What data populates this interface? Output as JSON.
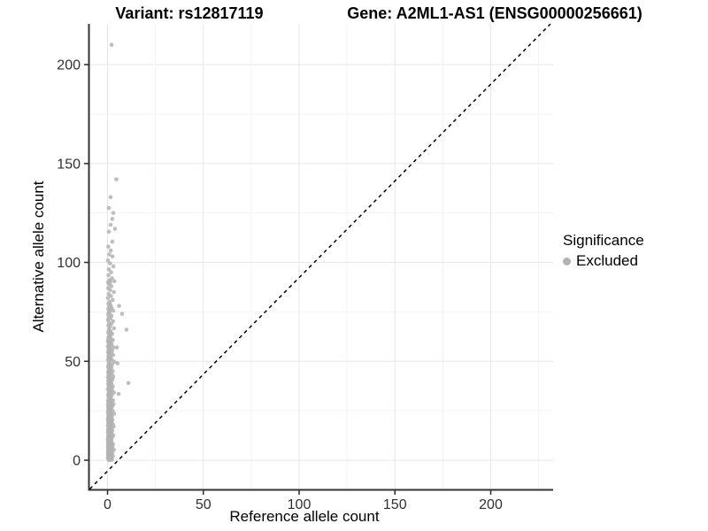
{
  "chart_data": {
    "type": "scatter",
    "title_left": "Variant: rs12817119",
    "title_right": "Gene: A2ML1-AS1 (ENSG00000256661)",
    "xlabel": "Reference allele count",
    "ylabel": "Alternative allele count",
    "x_ticks": [
      0,
      50,
      100,
      150,
      200
    ],
    "y_ticks": [
      0,
      50,
      100,
      150,
      200
    ],
    "x_minor_gridlines": [
      25,
      75,
      125,
      175,
      225
    ],
    "y_minor_gridlines": [
      25,
      75,
      125,
      175
    ],
    "xlim": [
      -9.5,
      232.5
    ],
    "ylim": [
      -14.8,
      220.6
    ],
    "grid": true,
    "reference_line": {
      "type": "identity",
      "slope": 1,
      "intercept": 0,
      "style": "dashed",
      "color": "#000000"
    },
    "legend": {
      "position": "right",
      "title": "Significance",
      "items": [
        {
          "label": "Excluded",
          "color": "#b3b3b3"
        }
      ]
    },
    "point_color": "#b3b3b3",
    "axis_color": "#333333",
    "tick_label_color": "#303030",
    "major_grid_color": "#e7e7e7",
    "minor_grid_color": "#f3f3f3",
    "points": [
      [
        2.1,
        210
      ],
      [
        4.6,
        142
      ],
      [
        1.6,
        133
      ],
      [
        0.7,
        127.5
      ],
      [
        3.0,
        125
      ],
      [
        2.5,
        122
      ],
      [
        1.6,
        119
      ],
      [
        3.9,
        117
      ],
      [
        0.7,
        115.5
      ],
      [
        2.5,
        110.5
      ],
      [
        6.0,
        78
      ],
      [
        7.6,
        74
      ],
      [
        9.9,
        66
      ],
      [
        10.9,
        39
      ],
      [
        5.8,
        33.5
      ],
      [
        4.9,
        57
      ],
      [
        5.2,
        49
      ],
      [
        0.4,
        108
      ],
      [
        1.7,
        106
      ],
      [
        0.9,
        104
      ],
      [
        2.6,
        103
      ],
      [
        0.2,
        101
      ],
      [
        1.3,
        99.5
      ],
      [
        3.1,
        98
      ],
      [
        0.7,
        96.5
      ],
      [
        1.9,
        95
      ],
      [
        0.5,
        93.5
      ],
      [
        2.3,
        92
      ],
      [
        1.0,
        91
      ],
      [
        3.6,
        90.5
      ],
      [
        0.3,
        90
      ],
      [
        1.5,
        90.2
      ],
      [
        0.8,
        89
      ],
      [
        2.0,
        88
      ],
      [
        0.3,
        87
      ],
      [
        1.4,
        86
      ],
      [
        3.3,
        85
      ],
      [
        0.6,
        84
      ],
      [
        1.8,
        83
      ],
      [
        0.2,
        82
      ],
      [
        2.7,
        81
      ],
      [
        1.1,
        80
      ],
      [
        0.5,
        79
      ],
      [
        1.6,
        78.5
      ],
      [
        0.9,
        77.5
      ],
      [
        2.2,
        77
      ],
      [
        0.4,
        76.5
      ],
      [
        1.3,
        76
      ],
      [
        3.0,
        75.5
      ],
      [
        0.7,
        75
      ],
      [
        1.0,
        74.5
      ],
      [
        0.3,
        73.8
      ],
      [
        2.1,
        73
      ],
      [
        0.6,
        72.3
      ],
      [
        1.5,
        71.6
      ],
      [
        0.2,
        70.9
      ],
      [
        2.9,
        70.2
      ],
      [
        0.8,
        69.5
      ],
      [
        1.9,
        68.8
      ],
      [
        0.4,
        68.1
      ],
      [
        1.2,
        67.4
      ],
      [
        3.4,
        66.7
      ],
      [
        0.7,
        66
      ],
      [
        1.6,
        65.3
      ],
      [
        0.3,
        64.6
      ],
      [
        2.4,
        63.9
      ],
      [
        0.9,
        63.2
      ],
      [
        1.4,
        62.5
      ],
      [
        0.5,
        61.8
      ],
      [
        2.0,
        61.1
      ],
      [
        0.2,
        60.4
      ],
      [
        1.1,
        60
      ],
      [
        2.8,
        60.7
      ],
      [
        0.6,
        62
      ],
      [
        1.7,
        64
      ],
      [
        0.4,
        59.6
      ],
      [
        1.3,
        59.2
      ],
      [
        2.2,
        58.8
      ],
      [
        0.7,
        58.4
      ],
      [
        1.8,
        58
      ],
      [
        0.2,
        57.5
      ],
      [
        3.1,
        57
      ],
      [
        0.9,
        56.6
      ],
      [
        1.5,
        56.2
      ],
      [
        0.5,
        55.8
      ],
      [
        2.5,
        55.3
      ],
      [
        1.0,
        54.9
      ],
      [
        0.3,
        54.5
      ],
      [
        1.9,
        54
      ],
      [
        0.6,
        53.6
      ],
      [
        2.9,
        53.2
      ],
      [
        1.2,
        52.8
      ],
      [
        0.4,
        52.3
      ],
      [
        1.6,
        51.9
      ],
      [
        0.8,
        51.5
      ],
      [
        2.1,
        51
      ],
      [
        0.2,
        50.6
      ],
      [
        1.4,
        50.2
      ],
      [
        3.5,
        49.8
      ],
      [
        0.7,
        49.3
      ],
      [
        1.1,
        48.9
      ],
      [
        2.4,
        48.4
      ],
      [
        0.5,
        48
      ],
      [
        1.7,
        47.6
      ],
      [
        0.3,
        47.1
      ],
      [
        2.0,
        46.7
      ],
      [
        0.9,
        46.2
      ],
      [
        1.3,
        45.8
      ],
      [
        0.6,
        45.4
      ],
      [
        2.7,
        45
      ],
      [
        0.3,
        44.6
      ],
      [
        1.5,
        44.2
      ],
      [
        0.8,
        43.9
      ],
      [
        2.3,
        43.5
      ],
      [
        0.5,
        43.1
      ],
      [
        1.2,
        42.7
      ],
      [
        3.0,
        42.3
      ],
      [
        0.2,
        41.9
      ],
      [
        1.8,
        41.5
      ],
      [
        0.6,
        41.2
      ],
      [
        2.6,
        40.8
      ],
      [
        1.0,
        40.4
      ],
      [
        0.4,
        40
      ],
      [
        1.6,
        39.6
      ],
      [
        0.9,
        39.2
      ],
      [
        2.1,
        38.8
      ],
      [
        0.3,
        38.5
      ],
      [
        1.3,
        38.1
      ],
      [
        0.7,
        37.7
      ],
      [
        2.8,
        37.3
      ],
      [
        1.1,
        36.9
      ],
      [
        0.5,
        36.5
      ],
      [
        1.9,
        36.1
      ],
      [
        0.2,
        35.8
      ],
      [
        2.4,
        35.4
      ],
      [
        0.8,
        35
      ],
      [
        1.4,
        34.6
      ],
      [
        3.3,
        34.2
      ],
      [
        0.6,
        33.8
      ],
      [
        1.7,
        33.4
      ],
      [
        0.3,
        33.1
      ],
      [
        2.2,
        32.7
      ],
      [
        1.0,
        32.3
      ],
      [
        0.5,
        31.9
      ],
      [
        1.5,
        31.5
      ],
      [
        0.9,
        31.1
      ],
      [
        2.0,
        30.8
      ],
      [
        0.4,
        30.4
      ],
      [
        1.2,
        30
      ],
      [
        2.9,
        30.2
      ],
      [
        0.3,
        29.8
      ],
      [
        1.4,
        29.5
      ],
      [
        0.7,
        29.3
      ],
      [
        2.2,
        29
      ],
      [
        0.5,
        28.8
      ],
      [
        1.1,
        28.5
      ],
      [
        3.1,
        28.3
      ],
      [
        0.2,
        28
      ],
      [
        1.7,
        27.8
      ],
      [
        0.9,
        27.5
      ],
      [
        2.5,
        27.3
      ],
      [
        0.4,
        27
      ],
      [
        1.3,
        26.8
      ],
      [
        0.6,
        26.5
      ],
      [
        2.0,
        26.3
      ],
      [
        1.0,
        26
      ],
      [
        0.3,
        25.8
      ],
      [
        1.6,
        25.5
      ],
      [
        0.8,
        25.3
      ],
      [
        2.7,
        25
      ],
      [
        0.5,
        24.7
      ],
      [
        1.2,
        24.4
      ],
      [
        0.2,
        24.1
      ],
      [
        1.9,
        23.8
      ],
      [
        3.4,
        23.5
      ],
      [
        0.7,
        23.2
      ],
      [
        1.5,
        22.9
      ],
      [
        0.4,
        22.6
      ],
      [
        2.3,
        22.3
      ],
      [
        1.0,
        22
      ],
      [
        0.6,
        21.7
      ],
      [
        1.8,
        21.4
      ],
      [
        0.3,
        21.1
      ],
      [
        2.1,
        20.8
      ],
      [
        0.9,
        20.5
      ],
      [
        1.3,
        20.2
      ],
      [
        0.5,
        20
      ],
      [
        2.6,
        20.3
      ],
      [
        1.1,
        20.6
      ],
      [
        0.2,
        20.9
      ],
      [
        0.4,
        19.8
      ],
      [
        1.2,
        19.6
      ],
      [
        0.7,
        19.3
      ],
      [
        2.0,
        19.1
      ],
      [
        0.3,
        18.9
      ],
      [
        1.6,
        18.6
      ],
      [
        0.9,
        18.4
      ],
      [
        2.8,
        18.2
      ],
      [
        0.5,
        17.9
      ],
      [
        1.1,
        17.7
      ],
      [
        0.2,
        17.5
      ],
      [
        1.8,
        17.2
      ],
      [
        3.2,
        17
      ],
      [
        0.6,
        16.8
      ],
      [
        1.4,
        16.5
      ],
      [
        0.8,
        16.3
      ],
      [
        2.2,
        16.1
      ],
      [
        0.3,
        15.8
      ],
      [
        1.0,
        15.6
      ],
      [
        1.9,
        15.4
      ],
      [
        0.5,
        15.1
      ],
      [
        2.5,
        14.9
      ],
      [
        0.7,
        14.7
      ],
      [
        1.3,
        14.4
      ],
      [
        0.2,
        14.2
      ],
      [
        1.7,
        14
      ],
      [
        0.9,
        13.7
      ],
      [
        2.1,
        13.5
      ],
      [
        0.4,
        13.3
      ],
      [
        1.5,
        13
      ],
      [
        0.6,
        12.8
      ],
      [
        3.0,
        12.6
      ],
      [
        1.1,
        12.3
      ],
      [
        0.3,
        12.1
      ],
      [
        1.8,
        11.9
      ],
      [
        0.8,
        11.6
      ],
      [
        2.4,
        11.4
      ],
      [
        0.5,
        11.2
      ],
      [
        1.2,
        10.9
      ],
      [
        0.2,
        10.7
      ],
      [
        1.6,
        10.5
      ],
      [
        0.9,
        10.2
      ],
      [
        2.0,
        10
      ],
      [
        0.6,
        10.3
      ],
      [
        1.4,
        10.8
      ],
      [
        0.3,
        9.8
      ],
      [
        1.1,
        9.7
      ],
      [
        0.6,
        9.5
      ],
      [
        1.9,
        9.3
      ],
      [
        0.2,
        9.2
      ],
      [
        1.4,
        9
      ],
      [
        0.8,
        8.8
      ],
      [
        2.3,
        8.7
      ],
      [
        0.4,
        8.5
      ],
      [
        1.6,
        8.3
      ],
      [
        0.7,
        8.2
      ],
      [
        2.9,
        8
      ],
      [
        1.0,
        7.8
      ],
      [
        0.3,
        7.7
      ],
      [
        1.3,
        7.5
      ],
      [
        0.5,
        7.3
      ],
      [
        2.1,
        7.2
      ],
      [
        0.9,
        7
      ],
      [
        1.7,
        6.8
      ],
      [
        0.2,
        6.7
      ],
      [
        1.2,
        6.5
      ],
      [
        2.6,
        6.3
      ],
      [
        0.6,
        6.2
      ],
      [
        1.5,
        6
      ],
      [
        0.4,
        5.8
      ],
      [
        1.9,
        5.7
      ],
      [
        0.8,
        5.5
      ],
      [
        3.3,
        5.3
      ],
      [
        1.1,
        5.2
      ],
      [
        0.3,
        5
      ],
      [
        2.2,
        4.8
      ],
      [
        0.7,
        4.7
      ],
      [
        1.4,
        4.5
      ],
      [
        0.5,
        4.3
      ],
      [
        1.8,
        4.2
      ],
      [
        0.2,
        4
      ],
      [
        2.5,
        3.8
      ],
      [
        1.0,
        3.7
      ],
      [
        0.6,
        3.5
      ],
      [
        1.3,
        3.3
      ],
      [
        0.4,
        3.2
      ],
      [
        2.0,
        3
      ],
      [
        0.9,
        2.8
      ],
      [
        1.6,
        2.7
      ],
      [
        0.3,
        2.5
      ],
      [
        1.2,
        2.3
      ],
      [
        2.8,
        2.2
      ],
      [
        0.5,
        2
      ],
      [
        1.5,
        1.8
      ],
      [
        0.7,
        1.7
      ],
      [
        2.2,
        1.5
      ],
      [
        0.2,
        1.3
      ],
      [
        1.1,
        1.2
      ],
      [
        0.8,
        1
      ],
      [
        1.8,
        0.8
      ],
      [
        0.4,
        0.7
      ],
      [
        1.3,
        0.5
      ],
      [
        0.6,
        0.3
      ],
      [
        2.4,
        0.2
      ],
      [
        1.0,
        0
      ]
    ]
  }
}
